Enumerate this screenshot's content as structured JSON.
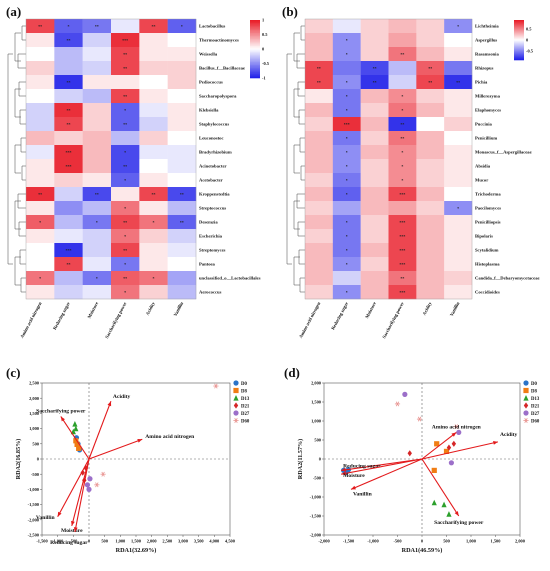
{
  "chart_data": [
    {
      "panel": "(a)",
      "type": "heatmap",
      "columns": [
        "Amino acid nitrogen",
        "Reducing sugar",
        "Moisture",
        "Saccharifying power",
        "Acidity",
        "Vanillin"
      ],
      "rows": [
        "Lactobacillus",
        "Thermoactinomyces",
        "Weissella",
        "Bacillus_f__Bacillaceae",
        "Pediococcus",
        "Saccharopolyspora",
        "Klebsiella",
        "Staphylococcus",
        "Leuconostoc",
        "Bradyrhizobium",
        "Acinetobacter",
        "Acetobacter",
        "Kroppenstedtia",
        "Streptococcus",
        "Desemzia",
        "Escherichia",
        "Streptomyces",
        "Pantoea",
        "unclassified_o__Lactobacillales",
        "Aerococcus"
      ],
      "values": [
        [
          0.8,
          -0.7,
          -0.6,
          -0.1,
          0.8,
          -0.7
        ],
        [
          0.1,
          -0.8,
          -0.2,
          0.9,
          0.1,
          0.0
        ],
        [
          0.0,
          -0.3,
          -0.1,
          0.8,
          0.1,
          0.1
        ],
        [
          0.2,
          -0.3,
          -0.2,
          0.8,
          0.2,
          0.2
        ],
        [
          0.1,
          -0.9,
          0.1,
          0.1,
          0.0,
          0.2
        ],
        [
          0.0,
          -0.2,
          -0.3,
          0.8,
          0.1,
          0.0
        ],
        [
          -0.2,
          0.9,
          0.2,
          -0.7,
          -0.1,
          0.1
        ],
        [
          -0.2,
          0.8,
          0.2,
          -0.7,
          -0.2,
          0.1
        ],
        [
          0.3,
          0.2,
          0.3,
          -0.3,
          0.2,
          0.0
        ],
        [
          -0.1,
          0.9,
          0.3,
          -0.8,
          -0.1,
          -0.1
        ],
        [
          0.1,
          0.9,
          0.3,
          -0.8,
          0.0,
          -0.1
        ],
        [
          0.1,
          0.2,
          0.1,
          -0.7,
          0.1,
          0.0
        ],
        [
          0.9,
          -0.2,
          -0.8,
          0.1,
          0.8,
          -0.8
        ],
        [
          0.1,
          -0.5,
          -0.3,
          0.6,
          0.1,
          -0.3
        ],
        [
          0.7,
          -0.3,
          -0.6,
          0.8,
          0.6,
          -0.7
        ],
        [
          0.1,
          -0.1,
          -0.2,
          0.6,
          0.2,
          -0.2
        ],
        [
          0.0,
          -0.9,
          -0.2,
          0.8,
          0.1,
          -0.1
        ],
        [
          0.0,
          0.8,
          -0.1,
          -0.6,
          0.1,
          0.0
        ],
        [
          0.6,
          -0.3,
          -0.6,
          0.7,
          0.6,
          -0.4
        ],
        [
          0.1,
          -0.2,
          -0.1,
          0.6,
          0.2,
          -0.3
        ]
      ],
      "stars": [
        [
          "**",
          "*",
          "**",
          "",
          "**",
          "*"
        ],
        [
          "",
          "**",
          "",
          "***",
          "",
          ""
        ],
        [
          "",
          "",
          "",
          "**",
          "",
          ""
        ],
        [
          "",
          "",
          "",
          "**",
          "",
          ""
        ],
        [
          "",
          "**",
          "",
          "",
          "",
          ""
        ],
        [
          "",
          "",
          "",
          "**",
          "",
          ""
        ],
        [
          "",
          "**",
          "",
          "*",
          "",
          ""
        ],
        [
          "",
          "**",
          "",
          "**",
          "",
          ""
        ],
        [
          "",
          "",
          "",
          "",
          "",
          ""
        ],
        [
          "",
          "***",
          "",
          "*",
          "",
          ""
        ],
        [
          "",
          "***",
          "",
          "**",
          "",
          ""
        ],
        [
          "",
          "",
          "",
          "*",
          "",
          ""
        ],
        [
          "**",
          "",
          "**",
          "",
          "**",
          "**"
        ],
        [
          "",
          "",
          "",
          "*",
          "",
          ""
        ],
        [
          "*",
          "",
          "*",
          "**",
          "*",
          "**"
        ],
        [
          "",
          "",
          "",
          "*",
          "",
          ""
        ],
        [
          "",
          "***",
          "",
          "**",
          "",
          ""
        ],
        [
          "",
          "**",
          "",
          "*",
          "",
          ""
        ],
        [
          "*",
          "",
          "*",
          "**",
          "*",
          ""
        ],
        [
          "",
          "",
          "",
          "*",
          "",
          ""
        ]
      ],
      "colorbar": {
        "min": -1,
        "max": 1,
        "ticks": [
          "1",
          "0.5",
          "0",
          "-0.5",
          "-1"
        ]
      }
    },
    {
      "panel": "(b)",
      "type": "heatmap",
      "columns": [
        "Amino acid nitrogen",
        "Reducing sugar",
        "Moisture",
        "Saccharifying power",
        "Acidity",
        "Vanillin"
      ],
      "rows": [
        "Lichtheimia",
        "Aspergillus",
        "Rasamsonia",
        "Rhizopus",
        "Pichia",
        "Millerozyma",
        "Elaphomyces",
        "Puccinia",
        "Penicillium",
        "Monascus_f__Aspergillaceae",
        "Absidia",
        "Mucor",
        "Trichoderma",
        "Paecilomyces",
        "Penicilliopsis",
        "Bipolaris",
        "Scytalidium",
        "Histoplasma",
        "Candida_f__Debaryomycetaceae",
        "Coccidioides"
      ],
      "values": [
        [
          0.2,
          -0.1,
          0.2,
          0.3,
          0.2,
          -0.5
        ],
        [
          0.3,
          -0.5,
          0.2,
          0.4,
          0.2,
          0.0
        ],
        [
          0.3,
          -0.5,
          0.2,
          0.6,
          0.3,
          0.1
        ],
        [
          0.8,
          -0.6,
          -0.8,
          -0.3,
          0.7,
          -0.6
        ],
        [
          0.8,
          -0.5,
          -0.9,
          -0.2,
          0.8,
          -0.9
        ],
        [
          0.1,
          -0.6,
          0.3,
          0.5,
          0.2,
          0.1
        ],
        [
          0.3,
          -0.6,
          0.2,
          0.6,
          0.3,
          0.1
        ],
        [
          0.2,
          0.9,
          0.3,
          -0.9,
          0.0,
          0.2
        ],
        [
          0.3,
          -0.6,
          0.2,
          0.6,
          0.3,
          0.0
        ],
        [
          0.3,
          -0.5,
          0.3,
          0.5,
          0.3,
          0.1
        ],
        [
          0.3,
          -0.5,
          0.2,
          0.5,
          0.2,
          0.1
        ],
        [
          0.2,
          -0.6,
          0.2,
          0.5,
          0.2,
          0.1
        ],
        [
          0.3,
          -0.7,
          0.3,
          0.8,
          0.3,
          0.0
        ],
        [
          0.2,
          -0.4,
          0.3,
          0.4,
          0.2,
          -0.5
        ],
        [
          0.3,
          -0.6,
          0.2,
          0.8,
          0.3,
          0.1
        ],
        [
          0.2,
          -0.6,
          0.2,
          0.8,
          0.3,
          0.1
        ],
        [
          0.3,
          -0.6,
          0.3,
          0.8,
          0.3,
          0.1
        ],
        [
          0.3,
          -0.5,
          0.2,
          0.8,
          0.3,
          0.1
        ],
        [
          0.3,
          -0.2,
          0.3,
          0.6,
          0.3,
          0.2
        ],
        [
          0.2,
          -0.5,
          0.3,
          0.8,
          0.3,
          0.1
        ]
      ],
      "stars": [
        [
          "",
          "",
          "",
          "",
          "",
          "*"
        ],
        [
          "",
          "*",
          "",
          "",
          "",
          ""
        ],
        [
          "",
          "*",
          "",
          "**",
          "",
          ""
        ],
        [
          "**",
          "",
          "**",
          "",
          "**",
          ""
        ],
        [
          "**",
          "*",
          "**",
          "",
          "**",
          "**"
        ],
        [
          "",
          "*",
          "",
          "*",
          "",
          ""
        ],
        [
          "",
          "*",
          "",
          "*",
          "",
          ""
        ],
        [
          "",
          "***",
          "",
          "**",
          "",
          ""
        ],
        [
          "",
          "*",
          "",
          "**",
          "",
          ""
        ],
        [
          "",
          "*",
          "",
          "*",
          "",
          ""
        ],
        [
          "",
          "*",
          "",
          "*",
          "",
          ""
        ],
        [
          "",
          "*",
          "",
          "*",
          "",
          ""
        ],
        [
          "",
          "*",
          "",
          "***",
          "",
          ""
        ],
        [
          "",
          "",
          "",
          "",
          "",
          "*"
        ],
        [
          "",
          "*",
          "",
          "***",
          "",
          ""
        ],
        [
          "",
          "*",
          "",
          "***",
          "",
          ""
        ],
        [
          "",
          "*",
          "",
          "***",
          "",
          ""
        ],
        [
          "",
          "*",
          "",
          "***",
          "",
          ""
        ],
        [
          "",
          "",
          "",
          "**",
          "",
          ""
        ],
        [
          "",
          "*",
          "",
          "***",
          "",
          ""
        ]
      ],
      "colorbar": {
        "min": -0.9,
        "max": 0.9,
        "ticks": [
          "0.5",
          "0",
          "-0.5"
        ]
      }
    },
    {
      "panel": "(c)",
      "type": "scatter",
      "xlabel": "RDA1(32.69%)",
      "ylabel": "RDA2(16.85%)",
      "xlim": [
        -1500,
        4500
      ],
      "ylim": [
        -2500,
        2500
      ],
      "xticks": [
        "-1,500",
        "-1,000",
        "-500",
        "0",
        "500",
        "1,000",
        "1,500",
        "2,000",
        "2,500",
        "3,000",
        "3,500",
        "4,000",
        "4,500"
      ],
      "xtick_values": [
        -1500,
        -1000,
        -500,
        0,
        500,
        1000,
        1500,
        2000,
        2500,
        3000,
        3500,
        4000,
        4500
      ],
      "yticks": [
        "2,500",
        "2,000",
        "1,500",
        "1,000",
        "500",
        "0",
        "-500",
        "-1,000",
        "-1,500",
        "-2,000",
        "-2,500"
      ],
      "ytick_values": [
        2500,
        2000,
        1500,
        1000,
        500,
        0,
        -500,
        -1000,
        -1500,
        -2000,
        -2500
      ],
      "legend": [
        "D0",
        "D8",
        "D13",
        "D21",
        "D27",
        "D60"
      ],
      "points": [
        {
          "group": "D0",
          "x": -400,
          "y": 700
        },
        {
          "group": "D0",
          "x": -350,
          "y": 500
        },
        {
          "group": "D0",
          "x": -300,
          "y": 300
        },
        {
          "group": "D8",
          "x": -420,
          "y": 600
        },
        {
          "group": "D8",
          "x": -380,
          "y": 480
        },
        {
          "group": "D8",
          "x": -330,
          "y": 350
        },
        {
          "group": "D13",
          "x": -450,
          "y": 1150
        },
        {
          "group": "D13",
          "x": -500,
          "y": 900
        },
        {
          "group": "D13",
          "x": -420,
          "y": 1000
        },
        {
          "group": "D21",
          "x": -200,
          "y": -450
        },
        {
          "group": "D21",
          "x": -150,
          "y": -700
        },
        {
          "group": "D21",
          "x": -100,
          "y": -300
        },
        {
          "group": "D27",
          "x": -50,
          "y": -850
        },
        {
          "group": "D27",
          "x": 0,
          "y": -1000
        },
        {
          "group": "D27",
          "x": 30,
          "y": -650
        },
        {
          "group": "D60",
          "x": 4050,
          "y": 2400
        },
        {
          "group": "D60",
          "x": 450,
          "y": -500
        },
        {
          "group": "D60",
          "x": 250,
          "y": -850
        }
      ],
      "vectors": [
        {
          "label": "Acidity",
          "x": 700,
          "y": 1900
        },
        {
          "label": "Saccharifying power",
          "x": -900,
          "y": 1400
        },
        {
          "label": "Amino acid nitrogen",
          "x": 1700,
          "y": 650
        },
        {
          "label": "Vanillin",
          "x": -1000,
          "y": -1900
        },
        {
          "label": "Moisture",
          "x": -550,
          "y": -2200
        },
        {
          "label": "Reducing sugar",
          "x": -450,
          "y": -2400
        }
      ]
    },
    {
      "panel": "(d)",
      "type": "scatter",
      "xlabel": "RDA1(46.59%)",
      "ylabel": "RDA2(11.57%)",
      "xlim": [
        -2000,
        2000
      ],
      "ylim": [
        -2000,
        2000
      ],
      "xticks": [
        "-2,000",
        "-1,500",
        "-1,000",
        "-500",
        "0",
        "500",
        "1,000",
        "1,500",
        "2,000"
      ],
      "xtick_values": [
        -2000,
        -1500,
        -1000,
        -500,
        0,
        500,
        1000,
        1500,
        2000
      ],
      "yticks": [
        "2,000",
        "1,500",
        "1,000",
        "500",
        "0",
        "-500",
        "-1,000",
        "-1,500",
        "-2,000"
      ],
      "ytick_values": [
        2000,
        1500,
        1000,
        500,
        0,
        -500,
        -1000,
        -1500,
        -2000
      ],
      "legend": [
        "D0",
        "D8",
        "D13",
        "D21",
        "D27",
        "D60"
      ],
      "points": [
        {
          "group": "D0",
          "x": -1600,
          "y": -300
        },
        {
          "group": "D0",
          "x": -1550,
          "y": -350
        },
        {
          "group": "D0",
          "x": -1500,
          "y": -280
        },
        {
          "group": "D8",
          "x": 300,
          "y": 400
        },
        {
          "group": "D8",
          "x": 250,
          "y": -300
        },
        {
          "group": "D8",
          "x": 500,
          "y": 200
        },
        {
          "group": "D13",
          "x": 250,
          "y": -1150
        },
        {
          "group": "D13",
          "x": 450,
          "y": -1200
        },
        {
          "group": "D13",
          "x": 550,
          "y": -1450
        },
        {
          "group": "D21",
          "x": -250,
          "y": 150
        },
        {
          "group": "D21",
          "x": 550,
          "y": 300
        },
        {
          "group": "D21",
          "x": 650,
          "y": 400
        },
        {
          "group": "D27",
          "x": -350,
          "y": 1700
        },
        {
          "group": "D27",
          "x": 750,
          "y": 700
        },
        {
          "group": "D27",
          "x": 600,
          "y": -100
        },
        {
          "group": "D60",
          "x": -500,
          "y": 1450
        },
        {
          "group": "D60",
          "x": -50,
          "y": 1050
        },
        {
          "group": "D60",
          "x": 700,
          "y": 850
        }
      ],
      "vectors": [
        {
          "label": "Amino acid nitrogen",
          "x": 700,
          "y": 700
        },
        {
          "label": "Acidity",
          "x": 1550,
          "y": 450
        },
        {
          "label": "Reducing sugar",
          "x": -1650,
          "y": -300
        },
        {
          "label": "Moisture",
          "x": -1650,
          "y": -400
        },
        {
          "label": "Vanillin",
          "x": -1450,
          "y": -800
        },
        {
          "label": "Saccharifying power",
          "x": 750,
          "y": -1500
        }
      ]
    }
  ],
  "group_colors": {
    "D0": "#2a73c8",
    "D8": "#f07d14",
    "D13": "#2ca02c",
    "D21": "#d62728",
    "D27": "#9c6fc9",
    "D60": "#e8928f"
  },
  "group_markers": {
    "D0": "circle",
    "D8": "square",
    "D13": "triangle",
    "D21": "diamond",
    "D27": "circle",
    "D60": "asterisk"
  },
  "vector_color": "#e31a1c"
}
